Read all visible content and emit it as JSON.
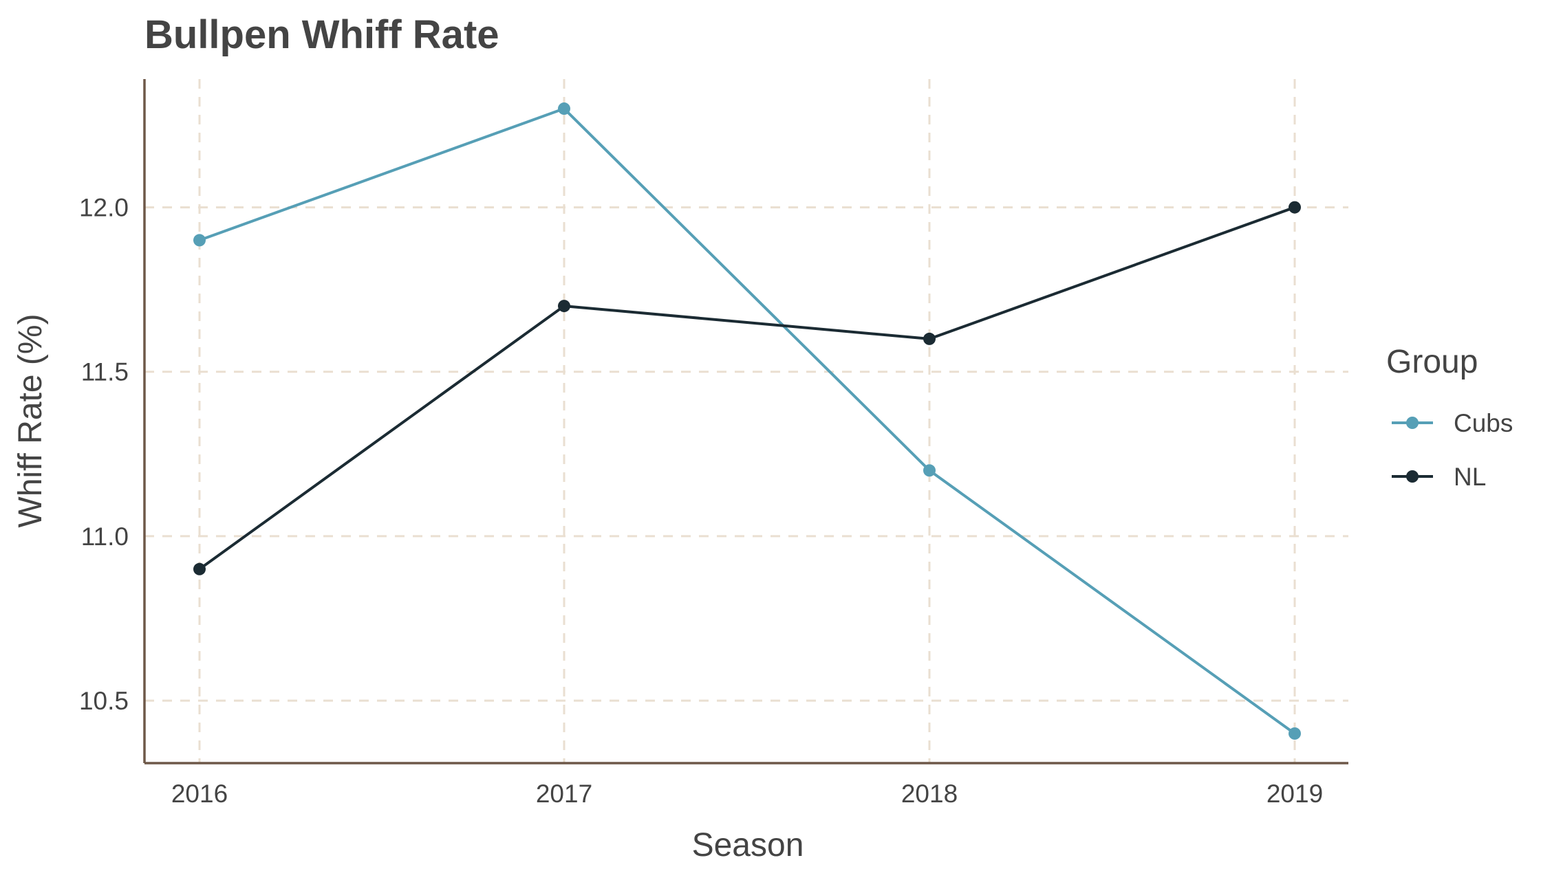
{
  "colors": {
    "cubs": "#569fb6",
    "nl": "#1b2b33",
    "grid": "#eadfd1",
    "axis": "#6e5849",
    "text": "#444444"
  },
  "chart_data": {
    "type": "line",
    "title": "Bullpen Whiff Rate",
    "xlabel": "Season",
    "ylabel": "Whiff Rate (%)",
    "x": [
      "2016",
      "2017",
      "2018",
      "2019"
    ],
    "y_ticks": [
      "10.5",
      "11.0",
      "11.5",
      "12.0"
    ],
    "ylim": [
      10.31,
      12.39
    ],
    "grid": true,
    "legend": {
      "title": "Group",
      "position": "right"
    },
    "series": [
      {
        "name": "Cubs",
        "values": [
          11.9,
          12.3,
          11.2,
          10.4
        ]
      },
      {
        "name": "NL",
        "values": [
          10.9,
          11.7,
          11.6,
          12.0
        ]
      }
    ]
  }
}
